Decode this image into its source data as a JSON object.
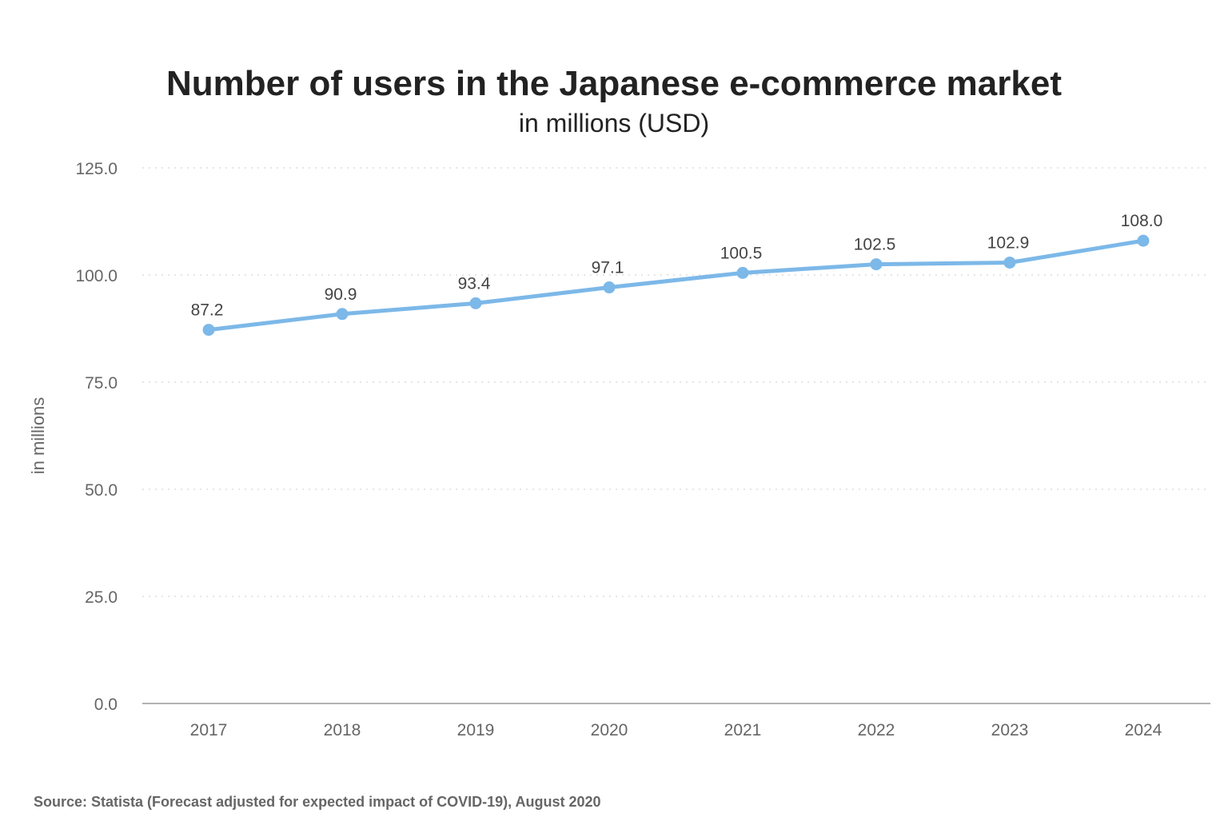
{
  "chart_data": {
    "type": "line",
    "title": "Number of users in the Japanese e-commerce market",
    "subtitle": "in millions (USD)",
    "ylabel": "in millions",
    "xlabel": "",
    "categories": [
      "2017",
      "2018",
      "2019",
      "2020",
      "2021",
      "2022",
      "2023",
      "2024"
    ],
    "values": [
      87.2,
      90.9,
      93.4,
      97.1,
      100.5,
      102.5,
      102.9,
      108.0
    ],
    "value_labels": [
      "87.2",
      "90.9",
      "93.4",
      "97.1",
      "100.5",
      "102.5",
      "102.9",
      "108.0"
    ],
    "ylim": [
      0,
      125
    ],
    "yticks": [
      "0.0",
      "25.0",
      "50.0",
      "75.0",
      "100.0",
      "125.0"
    ],
    "grid": true,
    "line_color": "#7cb8e8",
    "source": "Source: Statista (Forecast adjusted for expected impact of COVID-19), August 2020"
  }
}
